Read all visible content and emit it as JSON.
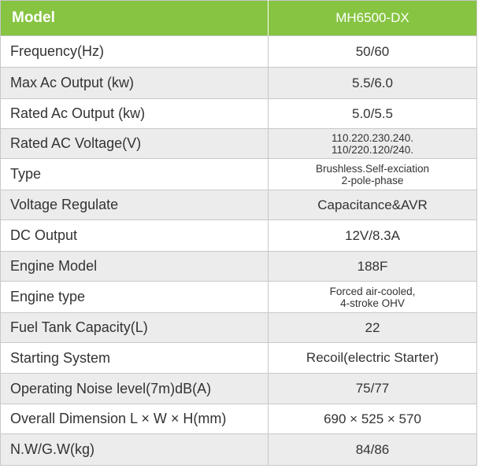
{
  "header": {
    "label": "Model",
    "value": "MH6500-DX"
  },
  "rows": [
    {
      "label": "Frequency(Hz)",
      "value": [
        "50/60"
      ]
    },
    {
      "label": "Max Ac Output (kw)",
      "value": [
        "5.5/6.0"
      ]
    },
    {
      "label": "Rated Ac Output (kw)",
      "value": [
        "5.0/5.5"
      ]
    },
    {
      "label": "Rated AC Voltage(V)",
      "value": [
        "110.220.230.240.",
        "110/220.120/240."
      ]
    },
    {
      "label": "Type",
      "value": [
        "Brushless.Self-exciation",
        "2-pole-phase"
      ]
    },
    {
      "label": "Voltage Regulate",
      "value": [
        "Capacitance&AVR"
      ]
    },
    {
      "label": "DC Output",
      "value": [
        "12V/8.3A"
      ]
    },
    {
      "label": "Engine Model",
      "value": [
        "188F"
      ]
    },
    {
      "label": "Engine type",
      "value": [
        "Forced air-cooled,",
        "4-stroke OHV"
      ]
    },
    {
      "label": "Fuel Tank Capacity(L)",
      "value": [
        "22"
      ]
    },
    {
      "label": "Starting System",
      "value": [
        "Recoil(electric Starter)"
      ]
    },
    {
      "label": "Operating Noise level(7m)dB(A)",
      "value": [
        "75/77"
      ]
    },
    {
      "label": "Overall Dimension L × W × H(mm)",
      "value": [
        "690 × 525 × 570"
      ]
    },
    {
      "label": "N.W/G.W(kg)",
      "value": [
        "84/86"
      ]
    }
  ],
  "colors": {
    "header_green": "#86c441",
    "row_shade": "#ececec",
    "border": "#c8c8c8"
  }
}
